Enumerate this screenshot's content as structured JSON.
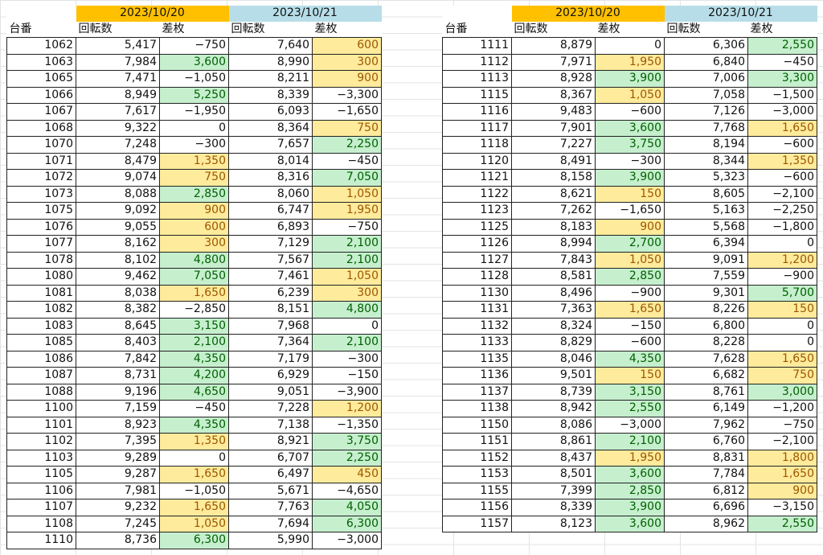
{
  "colors": {
    "date1_bg": "#ffc000",
    "date2_bg": "#b7dee8",
    "green_fill": "#c6efce",
    "green_text": "#006100",
    "yellow_fill": "#ffeb9c",
    "yellow_text": "#9c5700"
  },
  "tables": [
    {
      "date1": "2023/10/20",
      "date2": "2023/10/21",
      "headers": [
        "台番",
        "回転数",
        "差枚",
        "回転数",
        "差枚"
      ],
      "rows": [
        {
          "no": "1062",
          "r1": "5,417",
          "d1": "−750",
          "h1": "",
          "r2": "7,640",
          "d2": "600",
          "h2": "y"
        },
        {
          "no": "1063",
          "r1": "7,984",
          "d1": "3,600",
          "h1": "g",
          "r2": "8,990",
          "d2": "300",
          "h2": "y"
        },
        {
          "no": "1065",
          "r1": "7,471",
          "d1": "−1,050",
          "h1": "",
          "r2": "8,211",
          "d2": "900",
          "h2": "y"
        },
        {
          "no": "1066",
          "r1": "8,949",
          "d1": "5,250",
          "h1": "g",
          "r2": "8,339",
          "d2": "−3,300",
          "h2": ""
        },
        {
          "no": "1067",
          "r1": "7,617",
          "d1": "−1,950",
          "h1": "",
          "r2": "6,093",
          "d2": "−1,650",
          "h2": ""
        },
        {
          "no": "1068",
          "r1": "9,322",
          "d1": "0",
          "h1": "",
          "r2": "8,364",
          "d2": "750",
          "h2": "y"
        },
        {
          "no": "1070",
          "r1": "7,248",
          "d1": "−300",
          "h1": "",
          "r2": "7,657",
          "d2": "2,250",
          "h2": "g"
        },
        {
          "no": "1071",
          "r1": "8,479",
          "d1": "1,350",
          "h1": "y",
          "r2": "8,014",
          "d2": "−450",
          "h2": ""
        },
        {
          "no": "1072",
          "r1": "9,074",
          "d1": "750",
          "h1": "y",
          "r2": "8,316",
          "d2": "7,050",
          "h2": "g"
        },
        {
          "no": "1073",
          "r1": "8,088",
          "d1": "2,850",
          "h1": "g",
          "r2": "8,060",
          "d2": "1,050",
          "h2": "y"
        },
        {
          "no": "1075",
          "r1": "9,092",
          "d1": "900",
          "h1": "y",
          "r2": "6,747",
          "d2": "1,950",
          "h2": "y"
        },
        {
          "no": "1076",
          "r1": "9,055",
          "d1": "600",
          "h1": "y",
          "r2": "6,893",
          "d2": "−750",
          "h2": ""
        },
        {
          "no": "1077",
          "r1": "8,162",
          "d1": "300",
          "h1": "y",
          "r2": "7,129",
          "d2": "2,100",
          "h2": "g"
        },
        {
          "no": "1078",
          "r1": "8,102",
          "d1": "4,800",
          "h1": "g",
          "r2": "7,567",
          "d2": "2,100",
          "h2": "g"
        },
        {
          "no": "1080",
          "r1": "9,462",
          "d1": "7,050",
          "h1": "g",
          "r2": "7,461",
          "d2": "1,050",
          "h2": "y"
        },
        {
          "no": "1081",
          "r1": "8,038",
          "d1": "1,650",
          "h1": "y",
          "r2": "6,239",
          "d2": "300",
          "h2": "y"
        },
        {
          "no": "1082",
          "r1": "8,382",
          "d1": "−2,850",
          "h1": "",
          "r2": "8,151",
          "d2": "4,800",
          "h2": "g"
        },
        {
          "no": "1083",
          "r1": "8,645",
          "d1": "3,150",
          "h1": "g",
          "r2": "7,968",
          "d2": "0",
          "h2": ""
        },
        {
          "no": "1085",
          "r1": "8,403",
          "d1": "2,100",
          "h1": "g",
          "r2": "7,364",
          "d2": "2,100",
          "h2": "g"
        },
        {
          "no": "1086",
          "r1": "7,842",
          "d1": "4,350",
          "h1": "g",
          "r2": "7,179",
          "d2": "−300",
          "h2": ""
        },
        {
          "no": "1087",
          "r1": "8,731",
          "d1": "4,200",
          "h1": "g",
          "r2": "6,929",
          "d2": "−150",
          "h2": ""
        },
        {
          "no": "1088",
          "r1": "9,196",
          "d1": "4,650",
          "h1": "g",
          "r2": "9,051",
          "d2": "−3,900",
          "h2": ""
        },
        {
          "no": "1100",
          "r1": "7,159",
          "d1": "−450",
          "h1": "",
          "r2": "7,228",
          "d2": "1,200",
          "h2": "y"
        },
        {
          "no": "1101",
          "r1": "8,923",
          "d1": "4,350",
          "h1": "g",
          "r2": "7,138",
          "d2": "−1,350",
          "h2": ""
        },
        {
          "no": "1102",
          "r1": "7,395",
          "d1": "1,350",
          "h1": "y",
          "r2": "8,921",
          "d2": "3,750",
          "h2": "g"
        },
        {
          "no": "1103",
          "r1": "9,289",
          "d1": "0",
          "h1": "",
          "r2": "6,707",
          "d2": "2,250",
          "h2": "g"
        },
        {
          "no": "1105",
          "r1": "9,287",
          "d1": "1,650",
          "h1": "y",
          "r2": "6,497",
          "d2": "450",
          "h2": "y"
        },
        {
          "no": "1106",
          "r1": "7,981",
          "d1": "−1,050",
          "h1": "",
          "r2": "5,671",
          "d2": "−4,650",
          "h2": ""
        },
        {
          "no": "1107",
          "r1": "9,232",
          "d1": "1,650",
          "h1": "y",
          "r2": "7,763",
          "d2": "4,050",
          "h2": "g"
        },
        {
          "no": "1108",
          "r1": "7,245",
          "d1": "1,050",
          "h1": "y",
          "r2": "7,694",
          "d2": "6,300",
          "h2": "g"
        },
        {
          "no": "1110",
          "r1": "8,736",
          "d1": "6,300",
          "h1": "g",
          "r2": "5,990",
          "d2": "−3,000",
          "h2": ""
        }
      ]
    },
    {
      "date1": "2023/10/20",
      "date2": "2023/10/21",
      "headers": [
        "台番",
        "回転数",
        "差枚",
        "回転数",
        "差枚"
      ],
      "rows": [
        {
          "no": "1111",
          "r1": "8,879",
          "d1": "0",
          "h1": "",
          "r2": "6,306",
          "d2": "2,550",
          "h2": "g"
        },
        {
          "no": "1112",
          "r1": "7,971",
          "d1": "1,950",
          "h1": "y",
          "r2": "6,840",
          "d2": "−450",
          "h2": ""
        },
        {
          "no": "1113",
          "r1": "8,928",
          "d1": "3,900",
          "h1": "g",
          "r2": "7,006",
          "d2": "3,300",
          "h2": "g"
        },
        {
          "no": "1115",
          "r1": "8,367",
          "d1": "1,050",
          "h1": "y",
          "r2": "7,058",
          "d2": "−1,500",
          "h2": ""
        },
        {
          "no": "1116",
          "r1": "9,483",
          "d1": "−600",
          "h1": "",
          "r2": "7,126",
          "d2": "−3,000",
          "h2": ""
        },
        {
          "no": "1117",
          "r1": "7,901",
          "d1": "3,600",
          "h1": "g",
          "r2": "7,768",
          "d2": "1,650",
          "h2": "y"
        },
        {
          "no": "1118",
          "r1": "7,227",
          "d1": "3,750",
          "h1": "g",
          "r2": "8,194",
          "d2": "−600",
          "h2": ""
        },
        {
          "no": "1120",
          "r1": "8,491",
          "d1": "−300",
          "h1": "",
          "r2": "8,344",
          "d2": "1,350",
          "h2": "y"
        },
        {
          "no": "1121",
          "r1": "8,158",
          "d1": "3,900",
          "h1": "g",
          "r2": "5,323",
          "d2": "−600",
          "h2": ""
        },
        {
          "no": "1122",
          "r1": "8,621",
          "d1": "150",
          "h1": "y",
          "r2": "8,605",
          "d2": "−2,100",
          "h2": ""
        },
        {
          "no": "1123",
          "r1": "7,262",
          "d1": "−1,650",
          "h1": "",
          "r2": "5,163",
          "d2": "−2,250",
          "h2": ""
        },
        {
          "no": "1125",
          "r1": "8,183",
          "d1": "900",
          "h1": "y",
          "r2": "5,568",
          "d2": "−1,800",
          "h2": ""
        },
        {
          "no": "1126",
          "r1": "8,994",
          "d1": "2,700",
          "h1": "g",
          "r2": "6,394",
          "d2": "0",
          "h2": ""
        },
        {
          "no": "1127",
          "r1": "7,843",
          "d1": "1,050",
          "h1": "y",
          "r2": "9,091",
          "d2": "1,200",
          "h2": "y"
        },
        {
          "no": "1128",
          "r1": "8,581",
          "d1": "2,850",
          "h1": "g",
          "r2": "7,559",
          "d2": "−900",
          "h2": ""
        },
        {
          "no": "1130",
          "r1": "8,496",
          "d1": "−900",
          "h1": "",
          "r2": "9,301",
          "d2": "5,700",
          "h2": "g"
        },
        {
          "no": "1131",
          "r1": "7,363",
          "d1": "1,650",
          "h1": "y",
          "r2": "8,226",
          "d2": "150",
          "h2": "y"
        },
        {
          "no": "1132",
          "r1": "8,324",
          "d1": "−150",
          "h1": "",
          "r2": "6,800",
          "d2": "0",
          "h2": ""
        },
        {
          "no": "1133",
          "r1": "8,829",
          "d1": "−600",
          "h1": "",
          "r2": "8,228",
          "d2": "0",
          "h2": ""
        },
        {
          "no": "1135",
          "r1": "8,046",
          "d1": "4,350",
          "h1": "g",
          "r2": "7,628",
          "d2": "1,650",
          "h2": "y"
        },
        {
          "no": "1136",
          "r1": "9,501",
          "d1": "150",
          "h1": "y",
          "r2": "6,682",
          "d2": "750",
          "h2": "y"
        },
        {
          "no": "1137",
          "r1": "8,739",
          "d1": "3,150",
          "h1": "g",
          "r2": "8,761",
          "d2": "3,000",
          "h2": "g"
        },
        {
          "no": "1138",
          "r1": "8,942",
          "d1": "2,550",
          "h1": "g",
          "r2": "6,149",
          "d2": "−1,200",
          "h2": ""
        },
        {
          "no": "1150",
          "r1": "8,086",
          "d1": "−3,000",
          "h1": "",
          "r2": "7,962",
          "d2": "−750",
          "h2": ""
        },
        {
          "no": "1151",
          "r1": "8,861",
          "d1": "2,100",
          "h1": "g",
          "r2": "6,760",
          "d2": "−2,100",
          "h2": ""
        },
        {
          "no": "1152",
          "r1": "8,437",
          "d1": "1,950",
          "h1": "y",
          "r2": "8,831",
          "d2": "1,800",
          "h2": "y"
        },
        {
          "no": "1153",
          "r1": "8,501",
          "d1": "3,600",
          "h1": "g",
          "r2": "7,784",
          "d2": "1,650",
          "h2": "y"
        },
        {
          "no": "1155",
          "r1": "7,399",
          "d1": "2,850",
          "h1": "g",
          "r2": "6,812",
          "d2": "900",
          "h2": "y"
        },
        {
          "no": "1156",
          "r1": "8,339",
          "d1": "3,900",
          "h1": "g",
          "r2": "6,696",
          "d2": "−3,150",
          "h2": ""
        },
        {
          "no": "1157",
          "r1": "8,123",
          "d1": "3,600",
          "h1": "g",
          "r2": "8,962",
          "d2": "2,550",
          "h2": "g"
        }
      ]
    }
  ]
}
